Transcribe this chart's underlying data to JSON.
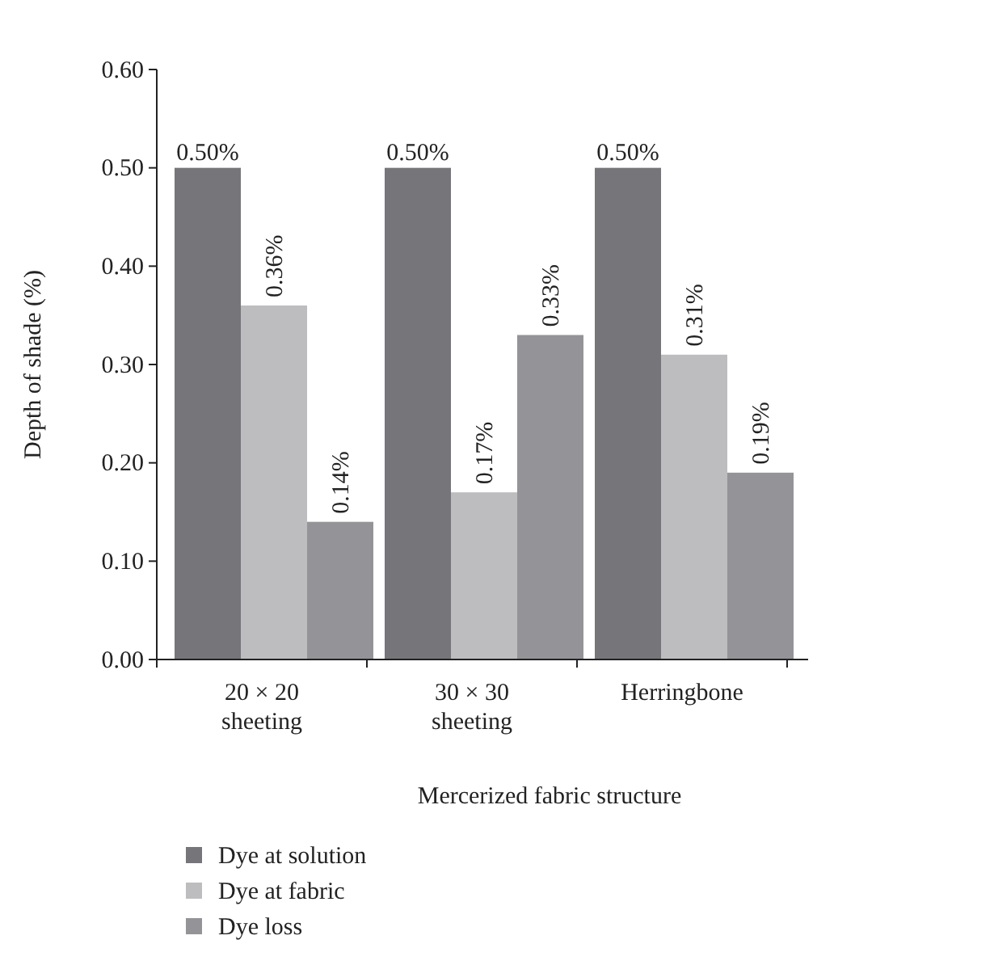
{
  "chart_data": {
    "type": "bar",
    "xlabel": "Mercerized fabric structure",
    "ylabel": "Depth of shade (%)",
    "categories": [
      "20 × 20 sheeting",
      "30 × 30 sheeting",
      "Herringbone"
    ],
    "series": [
      {
        "name": "Dye at solution",
        "color": "#76767a",
        "values": [
          0.5,
          0.5,
          0.5
        ],
        "value_labels": [
          "0.50%",
          "0.50%",
          "0.50%"
        ]
      },
      {
        "name": "Dye at fabric",
        "color": "#bdbdc0",
        "values": [
          0.36,
          0.17,
          0.31
        ],
        "value_labels": [
          "0.36%",
          "0.17%",
          "0.31%"
        ]
      },
      {
        "name": "Dye loss",
        "color": "#949498",
        "values": [
          0.14,
          0.33,
          0.19
        ],
        "value_labels": [
          "0.14%",
          "0.33%",
          "0.19%"
        ]
      }
    ],
    "ylim": [
      0,
      0.6
    ],
    "yticks": [
      {
        "value": 0,
        "label": "0.00"
      },
      {
        "value": 0.1,
        "label": "0.10"
      },
      {
        "value": 0.2,
        "label": "0.20"
      },
      {
        "value": 0.3,
        "label": "0.30"
      },
      {
        "value": 0.4,
        "label": "0.40"
      },
      {
        "value": 0.5,
        "label": "0.50"
      },
      {
        "value": 0.6,
        "label": "0.60"
      }
    ],
    "legend": "bottom",
    "grid": false
  }
}
